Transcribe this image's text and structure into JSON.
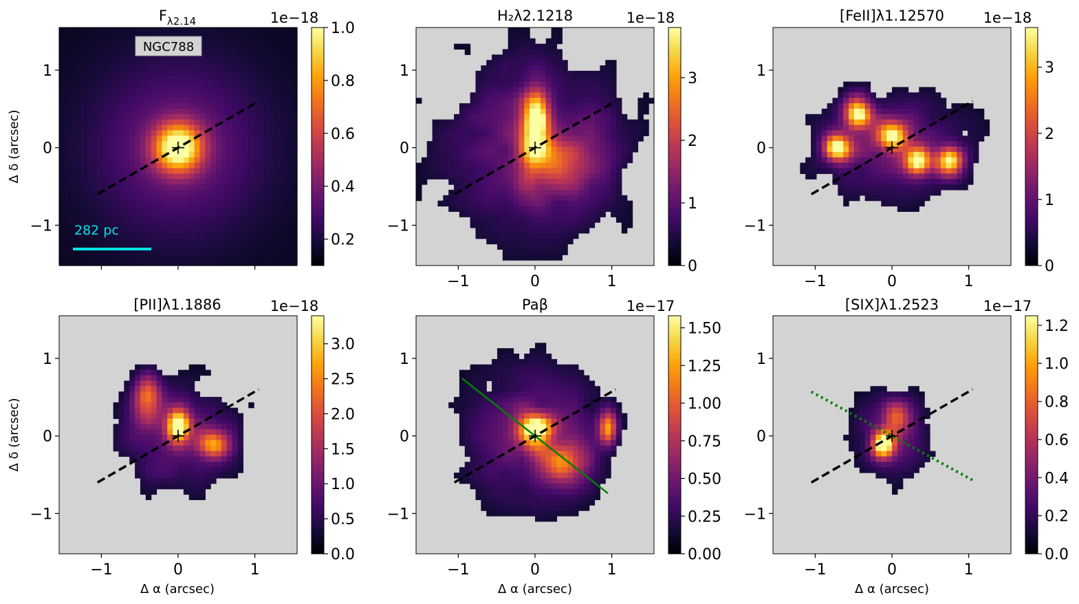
{
  "figure": {
    "galaxy_label": "NGC788",
    "scale_bar_label": "282 pc",
    "xlabel": "Δ α (arcsec)",
    "ylabel": "Δ δ (arcsec)",
    "colormap": "inferno",
    "mask_color": "#d3d3d3",
    "pa_line_color": "#000000",
    "scale_bar_color": "#00e5e5",
    "green_line_color": "#008000"
  },
  "chart_data": [
    {
      "type": "heatmap",
      "title_main": "F",
      "title_sub": "λ2.14",
      "xlim": [
        -1.55,
        1.55
      ],
      "ylim": [
        -1.52,
        1.55
      ],
      "x_ticks": [
        -1,
        0,
        1
      ],
      "y_ticks": [
        -1,
        0,
        1
      ],
      "x_tick_labels": [
        "",
        "",
        ""
      ],
      "y_tick_labels": [
        "1",
        "0",
        "−1"
      ],
      "cbar_min": 0.1,
      "cbar_max": 1.0,
      "cbar_ticks": [
        0.2,
        0.4,
        0.6,
        0.8,
        1.0
      ],
      "cbar_tick_labels": [
        "0.2",
        "0.4",
        "0.6",
        "0.8",
        "1.0"
      ],
      "cbar_exponent": "1e−18",
      "mask_background": false,
      "blobs": [
        {
          "x": 0,
          "y": 0,
          "sx": 0.22,
          "sy": 0.22,
          "a": 0.9
        },
        {
          "x": 0,
          "y": 0,
          "sx": 0.8,
          "sy": 0.8,
          "a": 0.25
        }
      ],
      "pa_line": {
        "x1": -1.05,
        "y1": -0.6,
        "x2": 1.05,
        "y2": 0.6,
        "style": "dashed"
      }
    },
    {
      "type": "heatmap",
      "title_main": "H₂λ2.1218",
      "title_sub": "",
      "xlim": [
        -1.55,
        1.55
      ],
      "ylim": [
        -1.52,
        1.55
      ],
      "x_ticks": [
        -1,
        0,
        1
      ],
      "y_ticks": [
        -1,
        0,
        1
      ],
      "x_tick_labels": [
        "−1",
        "0",
        "1"
      ],
      "y_tick_labels": [
        "1",
        "0",
        "−1"
      ],
      "cbar_min": 0,
      "cbar_max": 3.8,
      "cbar_ticks": [
        0,
        1,
        2,
        3
      ],
      "cbar_tick_labels": [
        "0",
        "1",
        "2",
        "3"
      ],
      "cbar_exponent": "1e−18",
      "mask_background": true,
      "blobs": [
        {
          "x": 0,
          "y": 0.2,
          "sx": 0.13,
          "sy": 0.35,
          "a": 0.95
        },
        {
          "x": 0.35,
          "y": -0.2,
          "sx": 0.35,
          "sy": 0.3,
          "a": 0.25
        },
        {
          "x": 0,
          "y": 0,
          "sx": 0.9,
          "sy": 0.9,
          "a": 0.3
        }
      ],
      "pa_line": {
        "x1": -1.05,
        "y1": -0.6,
        "x2": 1.05,
        "y2": 0.6,
        "style": "dashed"
      }
    },
    {
      "type": "heatmap",
      "title_main": "[FeII]λ1.12570",
      "title_sub": "",
      "xlim": [
        -1.55,
        1.55
      ],
      "ylim": [
        -1.52,
        1.55
      ],
      "x_ticks": [
        -1,
        0,
        1
      ],
      "y_ticks": [
        -1,
        0,
        1
      ],
      "x_tick_labels": [
        "−1",
        "0",
        "1"
      ],
      "y_tick_labels": [
        "1",
        "0",
        "−1"
      ],
      "cbar_min": 0,
      "cbar_max": 3.6,
      "cbar_ticks": [
        0,
        1,
        2,
        3
      ],
      "cbar_tick_labels": [
        "0",
        "1",
        "2",
        "3"
      ],
      "cbar_exponent": "1e−18",
      "mask_background": true,
      "blobs": [
        {
          "x": -0.7,
          "y": 0.0,
          "sx": 0.12,
          "sy": 0.12,
          "a": 0.8
        },
        {
          "x": -0.45,
          "y": 0.45,
          "sx": 0.12,
          "sy": 0.15,
          "a": 0.8
        },
        {
          "x": 0.0,
          "y": 0.15,
          "sx": 0.15,
          "sy": 0.12,
          "a": 0.8
        },
        {
          "x": 0.35,
          "y": -0.15,
          "sx": 0.12,
          "sy": 0.12,
          "a": 0.85
        },
        {
          "x": 0.75,
          "y": -0.2,
          "sx": 0.12,
          "sy": 0.12,
          "a": 0.9
        },
        {
          "x": 0,
          "y": 0,
          "sx": 0.8,
          "sy": 0.5,
          "a": 0.3
        }
      ],
      "pa_line": {
        "x1": -1.05,
        "y1": -0.6,
        "x2": 1.05,
        "y2": 0.6,
        "style": "dashed"
      }
    },
    {
      "type": "heatmap",
      "title_main": "[PII]λ1.1886",
      "title_sub": "",
      "xlim": [
        -1.55,
        1.55
      ],
      "ylim": [
        -1.52,
        1.55
      ],
      "x_ticks": [
        -1,
        0,
        1
      ],
      "y_ticks": [
        -1,
        0,
        1
      ],
      "x_tick_labels": [
        "−1",
        "0",
        "1"
      ],
      "y_tick_labels": [
        "1",
        "0",
        "−1"
      ],
      "cbar_min": 0,
      "cbar_max": 3.4,
      "cbar_ticks": [
        0.0,
        0.5,
        1.0,
        1.5,
        2.0,
        2.5,
        3.0
      ],
      "cbar_tick_labels": [
        "0.0",
        "0.5",
        "1.0",
        "1.5",
        "2.0",
        "2.5",
        "3.0"
      ],
      "cbar_exponent": "1e−18",
      "mask_background": true,
      "blobs": [
        {
          "x": 0.0,
          "y": 0.1,
          "sx": 0.1,
          "sy": 0.15,
          "a": 0.95
        },
        {
          "x": -0.4,
          "y": 0.5,
          "sx": 0.12,
          "sy": 0.2,
          "a": 0.5
        },
        {
          "x": 0.45,
          "y": -0.1,
          "sx": 0.15,
          "sy": 0.12,
          "a": 0.6
        },
        {
          "x": 0,
          "y": 0,
          "sx": 0.6,
          "sy": 0.5,
          "a": 0.3
        }
      ],
      "pa_line": {
        "x1": -1.05,
        "y1": -0.6,
        "x2": 1.05,
        "y2": 0.6,
        "style": "dashed"
      }
    },
    {
      "type": "heatmap",
      "title_main": "Paβ",
      "title_sub": "",
      "xlim": [
        -1.55,
        1.55
      ],
      "ylim": [
        -1.52,
        1.55
      ],
      "x_ticks": [
        -1,
        0,
        1
      ],
      "y_ticks": [
        -1,
        0,
        1
      ],
      "x_tick_labels": [
        "−1",
        "0",
        "1"
      ],
      "y_tick_labels": [
        "1",
        "0",
        "−1"
      ],
      "cbar_min": 0,
      "cbar_max": 1.58,
      "cbar_ticks": [
        0.0,
        0.25,
        0.5,
        0.75,
        1.0,
        1.25,
        1.5
      ],
      "cbar_tick_labels": [
        "0.00",
        "0.25",
        "0.50",
        "0.75",
        "1.00",
        "1.25",
        "1.50"
      ],
      "cbar_exponent": "1e−17",
      "mask_background": true,
      "blobs": [
        {
          "x": 0.0,
          "y": 0.05,
          "sx": 0.15,
          "sy": 0.15,
          "a": 0.95
        },
        {
          "x": 0.4,
          "y": -0.35,
          "sx": 0.2,
          "sy": 0.18,
          "a": 0.45
        },
        {
          "x": 0.95,
          "y": 0.1,
          "sx": 0.08,
          "sy": 0.15,
          "a": 0.6
        },
        {
          "x": 0,
          "y": 0,
          "sx": 0.7,
          "sy": 0.7,
          "a": 0.3
        }
      ],
      "pa_line": {
        "x1": -1.05,
        "y1": -0.6,
        "x2": 1.05,
        "y2": 0.6,
        "style": "dashed"
      },
      "green_line": {
        "x1": -0.95,
        "y1": 0.74,
        "x2": 0.95,
        "y2": -0.74,
        "style": "solid"
      }
    },
    {
      "type": "heatmap",
      "title_main": "[SIX]λ1.2523",
      "title_sub": "",
      "xlim": [
        -1.55,
        1.55
      ],
      "ylim": [
        -1.52,
        1.55
      ],
      "x_ticks": [
        -1,
        0,
        1
      ],
      "y_ticks": [
        -1,
        0,
        1
      ],
      "x_tick_labels": [
        "−1",
        "0",
        "1"
      ],
      "y_tick_labels": [
        "1",
        "0",
        "−1"
      ],
      "cbar_min": 0,
      "cbar_max": 1.25,
      "cbar_ticks": [
        0.0,
        0.2,
        0.4,
        0.6,
        0.8,
        1.0,
        1.2
      ],
      "cbar_tick_labels": [
        "0.0",
        "0.2",
        "0.4",
        "0.6",
        "0.8",
        "1.0",
        "1.2"
      ],
      "cbar_exponent": "1e−17",
      "mask_background": true,
      "blobs": [
        {
          "x": -0.12,
          "y": -0.1,
          "sx": 0.1,
          "sy": 0.12,
          "a": 0.9
        },
        {
          "x": 0.05,
          "y": 0.25,
          "sx": 0.12,
          "sy": 0.15,
          "a": 0.4
        },
        {
          "x": 0,
          "y": 0,
          "sx": 0.4,
          "sy": 0.45,
          "a": 0.25
        }
      ],
      "pa_line": {
        "x1": -1.05,
        "y1": -0.6,
        "x2": 1.05,
        "y2": 0.6,
        "style": "dashed"
      },
      "green_line": {
        "x1": -1.05,
        "y1": 0.57,
        "x2": 1.05,
        "y2": -0.57,
        "style": "dotted"
      }
    }
  ]
}
